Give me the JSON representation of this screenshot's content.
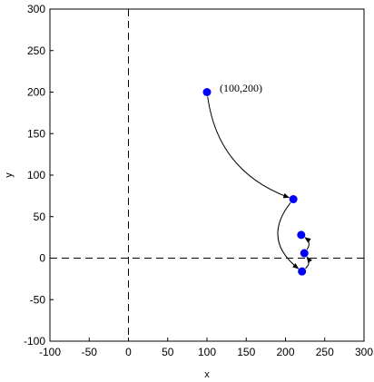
{
  "chart_data": {
    "type": "scatter",
    "xlabel": "x",
    "ylabel": "y",
    "xlim": [
      -100,
      300
    ],
    "ylim": [
      -100,
      300
    ],
    "xticks": [
      -100,
      -50,
      0,
      50,
      100,
      150,
      200,
      250,
      300
    ],
    "yticks": [
      -100,
      -50,
      0,
      50,
      100,
      150,
      200,
      250,
      300
    ],
    "grid": false,
    "reference_lines": {
      "x": 0,
      "y": 0,
      "style": "dashed"
    },
    "points": [
      {
        "x": 100,
        "y": 200
      },
      {
        "x": 210,
        "y": 71
      },
      {
        "x": 221,
        "y": -16
      },
      {
        "x": 224,
        "y": 6
      },
      {
        "x": 220,
        "y": 28
      }
    ],
    "marker_color": "#0000ff",
    "annotations": [
      {
        "text": "(100,200)",
        "x": 100,
        "y": 200
      }
    ],
    "arrows": [
      {
        "from": 0,
        "to": 1
      },
      {
        "from": 1,
        "to": 2
      },
      {
        "from": 2,
        "to": 3
      },
      {
        "from": 3,
        "to": 4
      }
    ]
  }
}
